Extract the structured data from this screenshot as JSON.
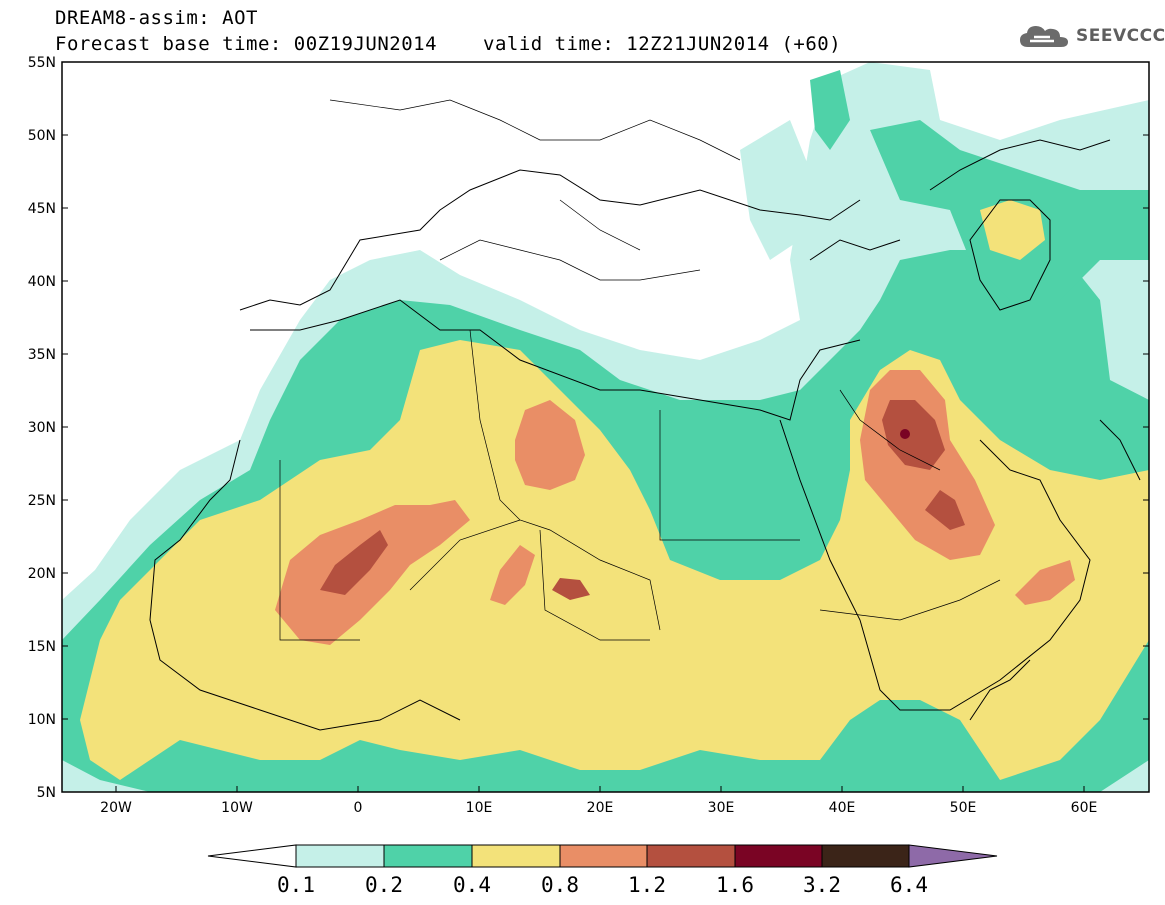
{
  "header": {
    "title_line1": "DREAM8-assim: AOT",
    "title_line2": "Forecast base time: 00Z19JUN2014",
    "valid_time": "valid time: 12Z21JUN2014 (+60)",
    "logo_text": "SEEVCCC"
  },
  "map": {
    "lat_labels": [
      "55N",
      "50N",
      "45N",
      "40N",
      "35N",
      "30N",
      "25N",
      "20N",
      "15N",
      "10N",
      "5N"
    ],
    "lon_labels": [
      "20W",
      "10W",
      "0",
      "10E",
      "20E",
      "30E",
      "40E",
      "50E",
      "60E"
    ],
    "extent": {
      "lon": [
        -25,
        65
      ],
      "lat": [
        5,
        55
      ]
    }
  },
  "colorbar": {
    "levels": [
      "0.1",
      "0.2",
      "0.4",
      "0.8",
      "1.2",
      "1.6",
      "3.2",
      "6.4"
    ],
    "colors": [
      "#ffffff",
      "#c5f0e8",
      "#4fd2a8",
      "#f3e27a",
      "#e98e66",
      "#b4503f",
      "#7a0424",
      "#3b2418",
      "#8e6aa8"
    ]
  }
}
